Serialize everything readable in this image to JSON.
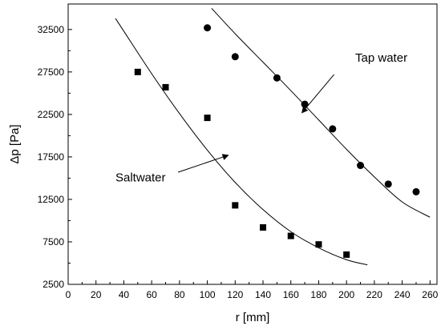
{
  "chart_data": {
    "type": "scatter",
    "xlabel": "r [mm]",
    "ylabel": "Δp [Pa]",
    "xlim": [
      0,
      265
    ],
    "ylim": [
      2500,
      35500
    ],
    "xticks": [
      0,
      20,
      40,
      60,
      80,
      100,
      120,
      140,
      160,
      180,
      200,
      220,
      240,
      260
    ],
    "yticks": [
      2500,
      7500,
      12500,
      17500,
      22500,
      27500,
      32500
    ],
    "grid": false,
    "legend": "none",
    "series": [
      {
        "name": "Tap water",
        "marker": "circle",
        "x": [
          100,
          120,
          150,
          170,
          190,
          210,
          230,
          250
        ],
        "y": [
          32700,
          29300,
          26800,
          23700,
          20800,
          16500,
          14300,
          13400
        ],
        "fit": {
          "x": [
            103,
            120,
            140,
            160,
            180,
            200,
            220,
            240,
            260
          ],
          "y": [
            35000,
            32000,
            28650,
            25300,
            21850,
            18400,
            15150,
            12200,
            10400
          ]
        }
      },
      {
        "name": "Saltwater",
        "marker": "square",
        "x": [
          50,
          70,
          100,
          120,
          140,
          160,
          180,
          200
        ],
        "y": [
          27500,
          25700,
          22100,
          11800,
          9200,
          8200,
          7200,
          6000
        ],
        "fit": {
          "x": [
            34,
            40,
            60,
            80,
            100,
            120,
            140,
            160,
            180,
            200,
            215
          ],
          "y": [
            33800,
            32300,
            27300,
            22600,
            18300,
            14500,
            11300,
            8700,
            6800,
            5400,
            4800
          ]
        }
      }
    ],
    "annotations": [
      {
        "series": "Tap water",
        "text": "Tap water",
        "label_at": [
          225,
          28700
        ],
        "arrow_from": [
          191,
          27200
        ],
        "arrow_to": [
          168,
          22700
        ]
      },
      {
        "series": "Saltwater",
        "text": "Saltwater",
        "label_at": [
          52,
          14600
        ],
        "arrow_from": [
          79,
          15700
        ],
        "arrow_to": [
          115,
          17700
        ]
      }
    ]
  }
}
